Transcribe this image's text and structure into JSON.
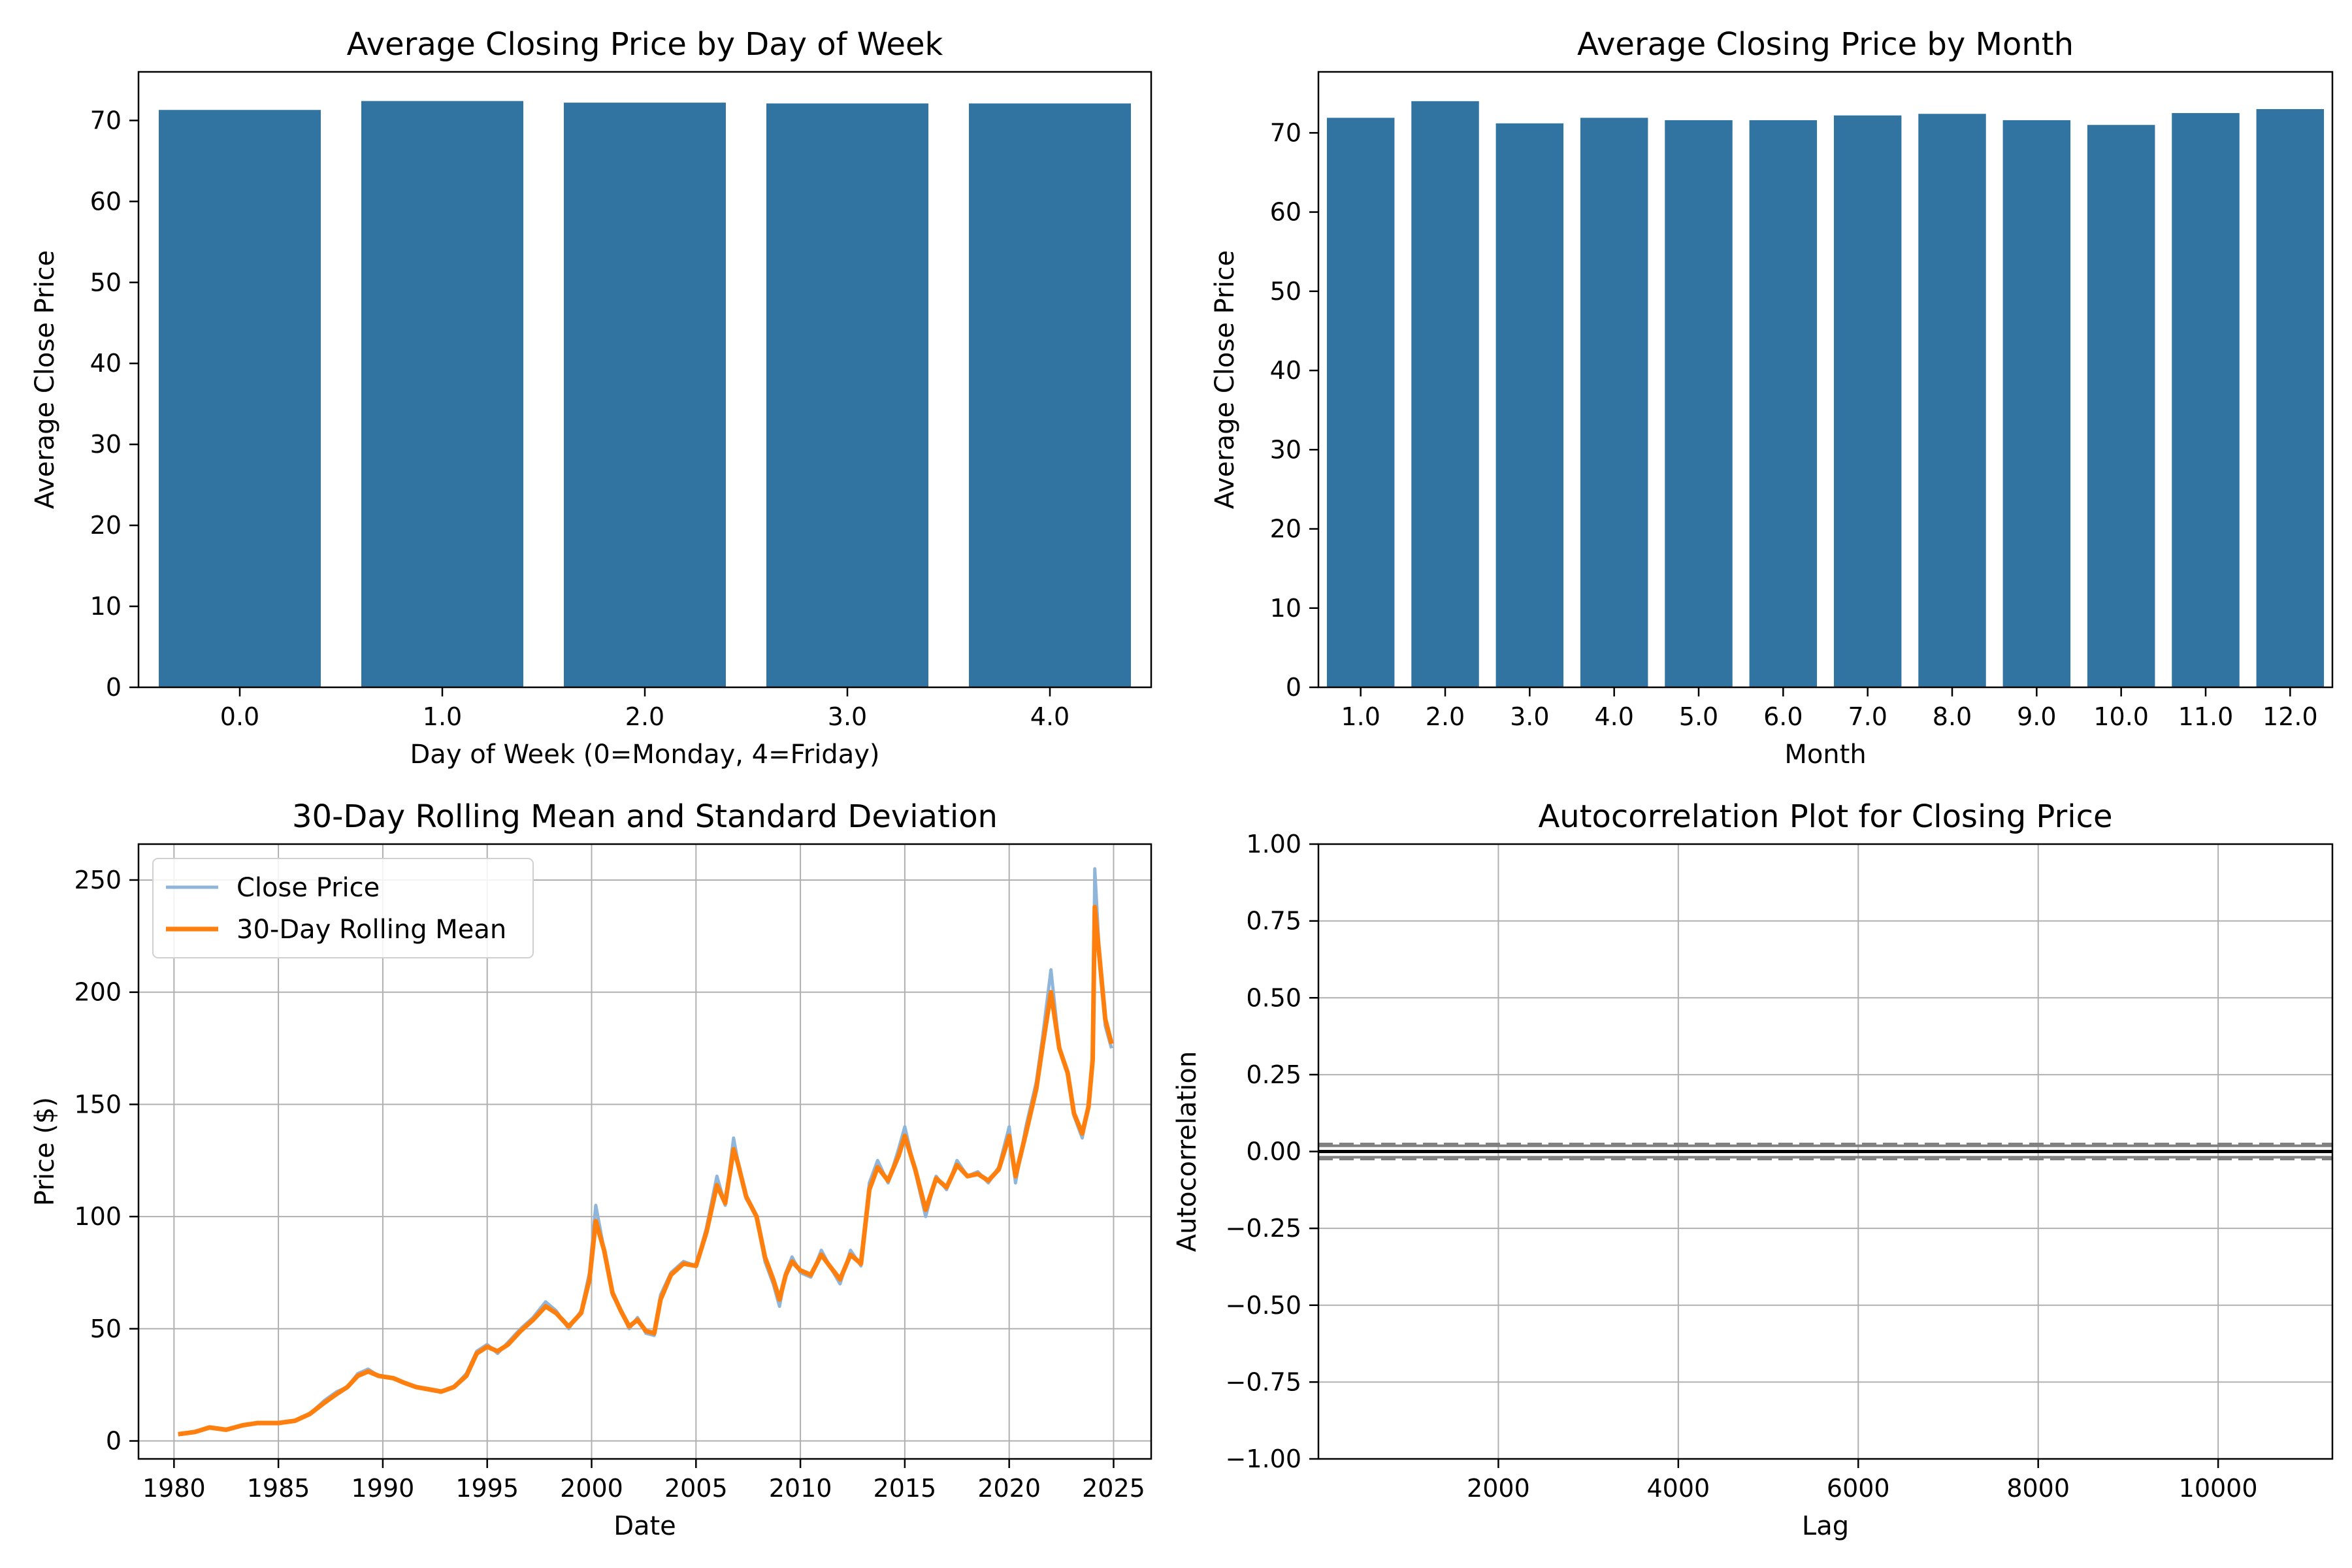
{
  "chart_data": [
    {
      "type": "bar",
      "title": "Average Closing Price by Day of Week",
      "xlabel": "Day of Week (0=Monday, 4=Friday)",
      "ylabel": "Average Close Price",
      "categories": [
        "0.0",
        "1.0",
        "2.0",
        "3.0",
        "4.0"
      ],
      "values": [
        71.3,
        72.4,
        72.2,
        72.1,
        72.1
      ],
      "ylim": [
        0,
        76
      ],
      "yticks": [
        0,
        10,
        20,
        30,
        40,
        50,
        60,
        70
      ],
      "color": "#3274a1",
      "grid": false
    },
    {
      "type": "bar",
      "title": "Average Closing Price by Month",
      "xlabel": "Month",
      "ylabel": "Average Close Price",
      "categories": [
        "1.0",
        "2.0",
        "3.0",
        "4.0",
        "5.0",
        "6.0",
        "7.0",
        "8.0",
        "9.0",
        "10.0",
        "11.0",
        "12.0"
      ],
      "values": [
        71.9,
        74.0,
        71.2,
        71.9,
        71.6,
        71.6,
        72.2,
        72.4,
        71.6,
        71.0,
        72.5,
        73.0
      ],
      "ylim": [
        0,
        77.7
      ],
      "yticks": [
        0,
        10,
        20,
        30,
        40,
        50,
        60,
        70
      ],
      "color": "#3274a1",
      "grid": false
    },
    {
      "type": "line",
      "title": "30-Day Rolling Mean and Standard Deviation",
      "xlabel": "Date",
      "ylabel": "Price ($)",
      "xlim": [
        1978.3,
        2026.8
      ],
      "ylim": [
        -8,
        266
      ],
      "xticks": [
        1980,
        1985,
        1990,
        1995,
        2000,
        2005,
        2010,
        2015,
        2020,
        2025
      ],
      "yticks": [
        0,
        50,
        100,
        150,
        200,
        250
      ],
      "grid": true,
      "legend_position": "top-left",
      "series": [
        {
          "name": "Close Price",
          "color": "#8fb6da",
          "x": [
            1980.2,
            1981.0,
            1981.7,
            1982.5,
            1983.3,
            1984.0,
            1985.0,
            1985.8,
            1986.5,
            1987.2,
            1987.8,
            1988.3,
            1988.8,
            1989.3,
            1989.8,
            1990.5,
            1991.0,
            1991.6,
            1992.2,
            1992.8,
            1993.4,
            1994.0,
            1994.5,
            1995.0,
            1995.5,
            1996.0,
            1996.6,
            1997.2,
            1997.8,
            1998.3,
            1998.9,
            1999.5,
            1999.9,
            2000.2,
            2000.6,
            2001.0,
            2001.4,
            2001.8,
            2002.2,
            2002.6,
            2003.0,
            2003.3,
            2003.8,
            2004.4,
            2005.0,
            2005.5,
            2006.0,
            2006.4,
            2006.8,
            2007.0,
            2007.4,
            2007.9,
            2008.3,
            2008.7,
            2009.0,
            2009.3,
            2009.6,
            2010.0,
            2010.5,
            2011.0,
            2011.4,
            2011.9,
            2012.4,
            2012.9,
            2013.3,
            2013.7,
            2014.2,
            2014.7,
            2015.0,
            2015.5,
            2016.0,
            2016.5,
            2017.0,
            2017.5,
            2018.0,
            2018.5,
            2019.0,
            2019.5,
            2020.0,
            2020.3,
            2020.8,
            2021.3,
            2021.6,
            2022.0,
            2022.4,
            2022.8,
            2023.1,
            2023.5,
            2023.8,
            2024.0,
            2024.1,
            2024.3,
            2024.6,
            2024.9
          ],
          "y": [
            3,
            4,
            6,
            5,
            7,
            8,
            8,
            9,
            12,
            18,
            22,
            24,
            30,
            32,
            29,
            28,
            26,
            24,
            23,
            22,
            24,
            30,
            40,
            43,
            39,
            44,
            50,
            55,
            62,
            58,
            50,
            58,
            75,
            105,
            85,
            65,
            58,
            50,
            55,
            48,
            47,
            65,
            75,
            80,
            78,
            95,
            118,
            105,
            135,
            125,
            108,
            100,
            80,
            70,
            60,
            75,
            82,
            75,
            73,
            85,
            78,
            70,
            85,
            78,
            115,
            125,
            115,
            130,
            140,
            120,
            100,
            118,
            112,
            125,
            118,
            120,
            115,
            122,
            140,
            115,
            140,
            160,
            180,
            210,
            175,
            165,
            145,
            135,
            150,
            170,
            255,
            220,
            185,
            175
          ]
        },
        {
          "name": "30-Day Rolling Mean",
          "color": "#ff7f0e",
          "x": [
            1980.2,
            1981.0,
            1981.7,
            1982.5,
            1983.3,
            1984.0,
            1985.0,
            1985.8,
            1986.5,
            1987.2,
            1987.8,
            1988.3,
            1988.8,
            1989.3,
            1989.8,
            1990.5,
            1991.0,
            1991.6,
            1992.2,
            1992.8,
            1993.4,
            1994.0,
            1994.5,
            1995.0,
            1995.5,
            1996.0,
            1996.6,
            1997.2,
            1997.8,
            1998.3,
            1998.9,
            1999.5,
            1999.9,
            2000.2,
            2000.6,
            2001.0,
            2001.4,
            2001.8,
            2002.2,
            2002.6,
            2003.0,
            2003.3,
            2003.8,
            2004.4,
            2005.0,
            2005.5,
            2006.0,
            2006.4,
            2006.8,
            2007.0,
            2007.4,
            2007.9,
            2008.3,
            2008.7,
            2009.0,
            2009.3,
            2009.6,
            2010.0,
            2010.5,
            2011.0,
            2011.4,
            2011.9,
            2012.4,
            2012.9,
            2013.3,
            2013.7,
            2014.2,
            2014.7,
            2015.0,
            2015.5,
            2016.0,
            2016.5,
            2017.0,
            2017.5,
            2018.0,
            2018.5,
            2019.0,
            2019.5,
            2020.0,
            2020.3,
            2020.8,
            2021.3,
            2021.6,
            2022.0,
            2022.4,
            2022.8,
            2023.1,
            2023.5,
            2023.8,
            2024.0,
            2024.1,
            2024.3,
            2024.6,
            2024.9
          ],
          "y": [
            3,
            4,
            6,
            5,
            7,
            8,
            8,
            9,
            12,
            17,
            21,
            24,
            29,
            31,
            29,
            28,
            26,
            24,
            23,
            22,
            24,
            29,
            39,
            42,
            40,
            43,
            49,
            54,
            60,
            57,
            51,
            57,
            72,
            98,
            85,
            66,
            58,
            51,
            54,
            49,
            48,
            63,
            74,
            79,
            78,
            93,
            114,
            106,
            130,
            124,
            109,
            100,
            82,
            72,
            63,
            74,
            80,
            76,
            74,
            83,
            78,
            72,
            83,
            79,
            112,
            122,
            116,
            127,
            136,
            121,
            103,
            117,
            113,
            123,
            118,
            119,
            116,
            121,
            136,
            118,
            137,
            157,
            176,
            200,
            175,
            164,
            146,
            137,
            149,
            170,
            238,
            218,
            188,
            177
          ]
        }
      ]
    },
    {
      "type": "line",
      "title": "Autocorrelation Plot for Closing Price",
      "xlabel": "Lag",
      "ylabel": "Autocorrelation",
      "xlim": [
        0,
        11270
      ],
      "ylim": [
        -1.0,
        1.0
      ],
      "xticks": [
        2000,
        4000,
        6000,
        8000,
        10000
      ],
      "yticks": [
        -1.0,
        -0.75,
        -0.5,
        -0.25,
        0.0,
        0.25,
        0.5,
        0.75,
        1.0
      ],
      "ytick_labels": [
        "−1.00",
        "−0.75",
        "−0.50",
        "−0.25",
        "0.00",
        "0.25",
        "0.50",
        "0.75",
        "1.00"
      ],
      "grid": true,
      "reference_lines": [
        {
          "y": 0.0,
          "style": "solid",
          "color": "#000000"
        },
        {
          "y": 0.0185,
          "style": "solid",
          "color": "#808080"
        },
        {
          "y": -0.0185,
          "style": "solid",
          "color": "#808080"
        },
        {
          "y": 0.0244,
          "style": "dashed",
          "color": "#808080"
        },
        {
          "y": -0.0244,
          "style": "dashed",
          "color": "#808080"
        }
      ]
    }
  ]
}
